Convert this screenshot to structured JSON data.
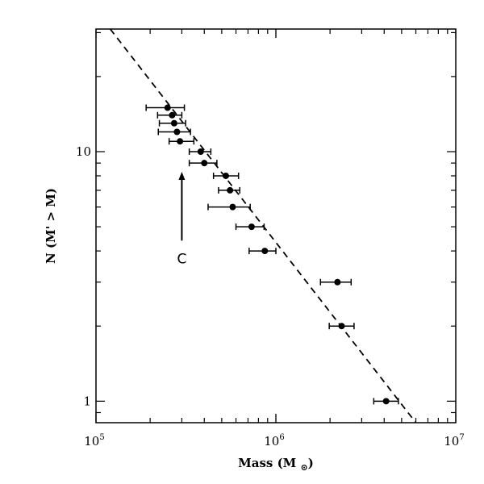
{
  "chart_data": {
    "type": "scatter",
    "xlabel": "Mass (M⊙)",
    "ylabel": "N (M' > M)",
    "x_scale": "log",
    "y_scale": "log",
    "xlim": [
      100000,
      10000000
    ],
    "ylim": [
      0.82,
      31
    ],
    "grid": false,
    "x_ticks": [
      {
        "value": 100000,
        "base": "10",
        "exp": "5"
      },
      {
        "value": 1000000,
        "base": "10",
        "exp": "6"
      },
      {
        "value": 10000000,
        "base": "10",
        "exp": "7"
      }
    ],
    "y_ticks": [
      {
        "value": 1,
        "label": "1"
      },
      {
        "value": 10,
        "label": "10"
      }
    ],
    "points": [
      {
        "x": 250000,
        "y": 15,
        "xerr": [
          190000,
          310000
        ]
      },
      {
        "x": 265000,
        "y": 14,
        "xerr": [
          220000,
          300000
        ]
      },
      {
        "x": 272000,
        "y": 13,
        "xerr": [
          225000,
          315000
        ]
      },
      {
        "x": 282000,
        "y": 12,
        "xerr": [
          222000,
          335000
        ]
      },
      {
        "x": 293000,
        "y": 11,
        "xerr": [
          255000,
          350000
        ]
      },
      {
        "x": 382000,
        "y": 10,
        "xerr": [
          330000,
          435000
        ]
      },
      {
        "x": 400000,
        "y": 9,
        "xerr": [
          330000,
          470000
        ]
      },
      {
        "x": 527000,
        "y": 8,
        "xerr": [
          450000,
          620000
        ]
      },
      {
        "x": 556000,
        "y": 7,
        "xerr": [
          480000,
          630000
        ]
      },
      {
        "x": 575000,
        "y": 6,
        "xerr": [
          420000,
          720000
        ]
      },
      {
        "x": 733000,
        "y": 5,
        "xerr": [
          600000,
          860000
        ]
      },
      {
        "x": 868000,
        "y": 4,
        "xerr": [
          710000,
          1000000
        ]
      },
      {
        "x": 2200000,
        "y": 3,
        "xerr": [
          1770000,
          2620000
        ]
      },
      {
        "x": 2320000,
        "y": 2,
        "xerr": [
          1980000,
          2720000
        ]
      },
      {
        "x": 4100000,
        "y": 1,
        "xerr": [
          3500000,
          4800000
        ]
      }
    ],
    "fit_line": {
      "style": "dashed",
      "x": [
        120000,
        6000000
      ],
      "y": [
        31,
        0.82
      ]
    },
    "annotation": {
      "text": "C",
      "x": 300000,
      "y_tail": 4.4,
      "y_head": 8.3
    }
  }
}
